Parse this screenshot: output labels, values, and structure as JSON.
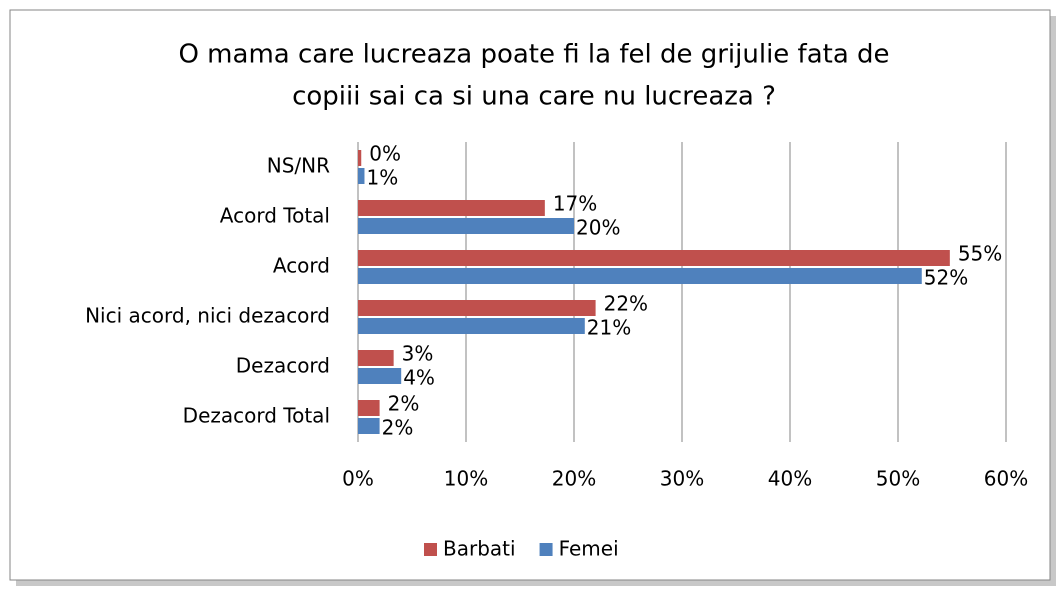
{
  "chart_data": {
    "type": "hbar",
    "title": [
      "O mama care lucreaza poate fi la fel de grijulie fata de",
      "copiii sai ca si una care nu lucreaza ?"
    ],
    "categories": [
      "NS/NR",
      "Acord Total",
      "Acord",
      "Nici acord, nici dezacord",
      "Dezacord",
      "Dezacord Total"
    ],
    "series": [
      {
        "name": "Barbati",
        "color": "#c0504d",
        "values": [
          0.3,
          17.3,
          54.8,
          22,
          3.3,
          2
        ],
        "value_labels": [
          "0%",
          "17%",
          "55%",
          "22%",
          "3%",
          "2%"
        ]
      },
      {
        "name": "Femei",
        "color": "#4f81bd",
        "values": [
          0.6,
          20,
          52.2,
          21,
          4,
          2
        ],
        "value_labels": [
          "1%",
          "20%",
          "52%",
          "21%",
          "4%",
          "2%"
        ]
      }
    ],
    "xlim": [
      0,
      60
    ],
    "xticks": [
      {
        "value": 0,
        "label": "0%"
      },
      {
        "value": 10,
        "label": "10%"
      },
      {
        "value": 20,
        "label": "20%"
      },
      {
        "value": 30,
        "label": "30%"
      },
      {
        "value": 40,
        "label": "40%"
      },
      {
        "value": 50,
        "label": "50%"
      },
      {
        "value": 60,
        "label": "60%"
      }
    ],
    "grid": true,
    "legend": "bottom"
  }
}
